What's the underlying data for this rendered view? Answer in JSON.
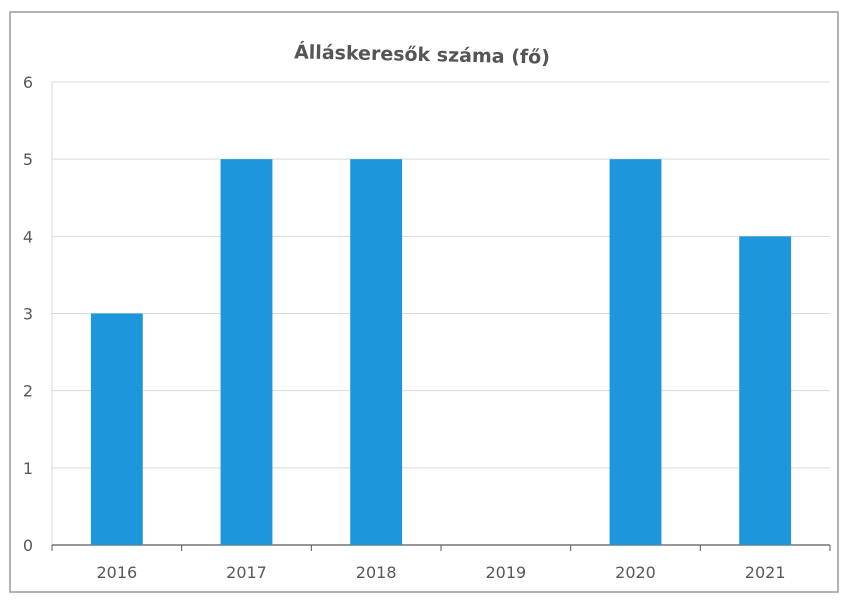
{
  "chart_data": {
    "type": "bar",
    "title": "Álláskeresők száma (fő)",
    "categories": [
      "2016",
      "2017",
      "2018",
      "2019",
      "2020",
      "2021"
    ],
    "values": [
      3,
      5,
      5,
      0,
      5,
      4
    ],
    "ylim": [
      0,
      6
    ],
    "yticks": [
      "0",
      "1",
      "2",
      "3",
      "4",
      "5",
      "6"
    ],
    "grid": true,
    "legend": "none",
    "colors": {
      "bar": "#1E96DB",
      "grid": "#D9D9D9",
      "axis": "#595959",
      "label": "#595959",
      "frame": "#9A9A9A"
    }
  }
}
